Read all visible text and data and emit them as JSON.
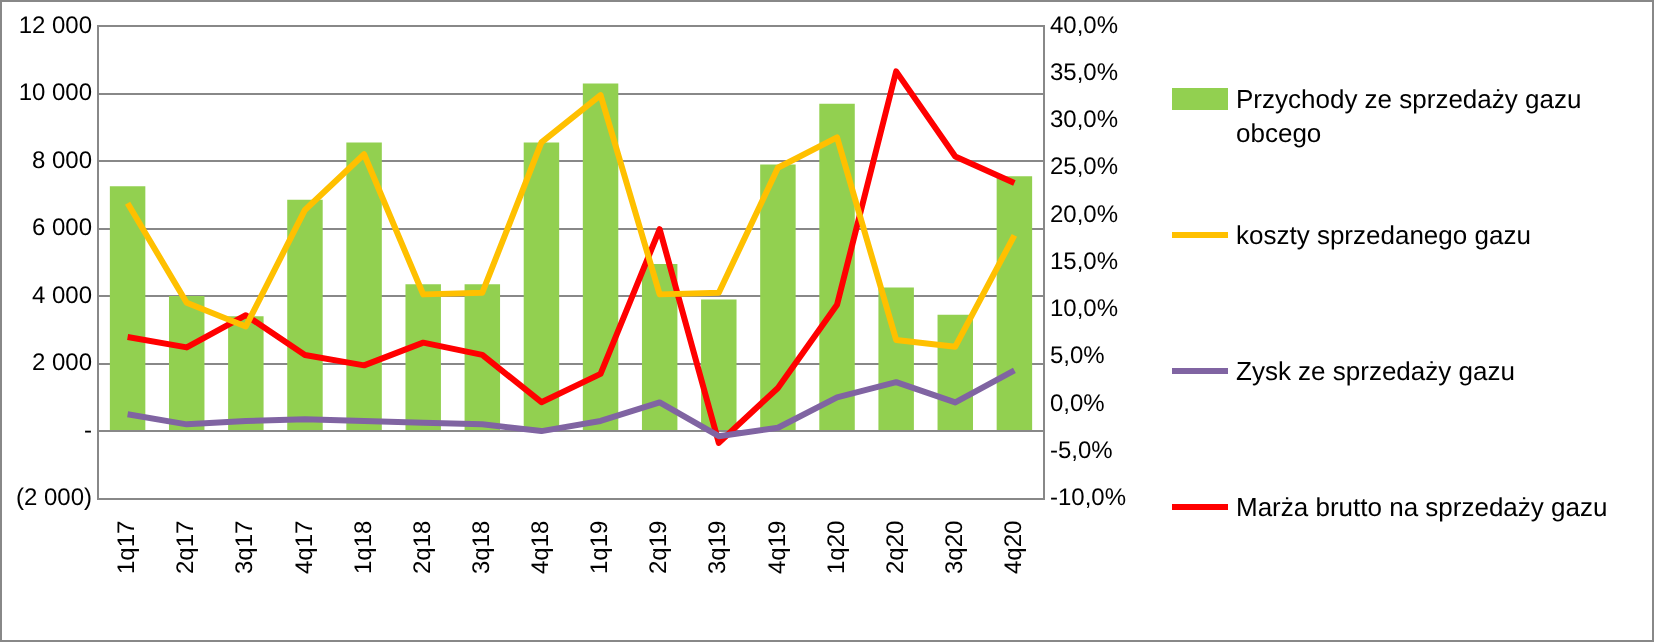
{
  "chart_data": {
    "type": "bar",
    "categories": [
      "1q17",
      "2q17",
      "3q17",
      "4q17",
      "1q18",
      "2q18",
      "3q18",
      "4q18",
      "1q19",
      "2q19",
      "3q19",
      "4q19",
      "1q20",
      "2q20",
      "3q20",
      "4q20"
    ],
    "series": [
      {
        "name": "Przychody ze sprzedaży gazu obcego",
        "color": "#92d050",
        "values": [
          7250,
          4000,
          3400,
          6850,
          8550,
          4350,
          4350,
          8550,
          10300,
          4950,
          3900,
          7900,
          9700,
          4250,
          3450,
          7550
        ]
      },
      {
        "name": "koszty sprzedanego gazu",
        "type": "line",
        "color": "#ffc000",
        "values": [
          6750,
          3800,
          3100,
          6550,
          8200,
          4050,
          4100,
          8550,
          9950,
          4050,
          4100,
          7800,
          8700,
          2700,
          2500,
          5800
        ]
      },
      {
        "name": "Zysk ze sprzedaży gazu",
        "type": "line",
        "color": "#8064a2",
        "values": [
          500,
          200,
          300,
          350,
          300,
          250,
          200,
          0,
          300,
          850,
          -150,
          100,
          1000,
          1450,
          850,
          1800
        ]
      },
      {
        "name": "Marża brutto na sprzedaży gazu",
        "type": "line",
        "color": "#ff0000",
        "axis": "y2",
        "values": [
          7.1,
          6.0,
          9.4,
          5.2,
          4.1,
          6.5,
          5.2,
          0.2,
          3.2,
          18.5,
          -4.1,
          1.7,
          10.5,
          35.2,
          26.2,
          23.4
        ]
      }
    ],
    "ylim": [
      -2000,
      12000
    ],
    "yticks": [
      {
        "value": -2000,
        "label": "(2 000)"
      },
      {
        "value": 0,
        "label": "-"
      },
      {
        "value": 2000,
        "label": "2 000"
      },
      {
        "value": 4000,
        "label": "4 000"
      },
      {
        "value": 6000,
        "label": "6 000"
      },
      {
        "value": 8000,
        "label": "8 000"
      },
      {
        "value": 10000,
        "label": "10 000"
      },
      {
        "value": 12000,
        "label": "12 000"
      }
    ],
    "y2lim": [
      -10,
      40
    ],
    "y2ticks": [
      {
        "value": -10,
        "label": "-10,0%"
      },
      {
        "value": -5,
        "label": "-5,0%"
      },
      {
        "value": 0,
        "label": "0,0%"
      },
      {
        "value": 5,
        "label": "5,0%"
      },
      {
        "value": 10,
        "label": "10,0%"
      },
      {
        "value": 15,
        "label": "15,0%"
      },
      {
        "value": 20,
        "label": "20,0%"
      },
      {
        "value": 25,
        "label": "25,0%"
      },
      {
        "value": 30,
        "label": "30,0%"
      },
      {
        "value": 35,
        "label": "35,0%"
      },
      {
        "value": 40,
        "label": "40,0%"
      }
    ],
    "grid": "y",
    "legend": "right",
    "marker": "none",
    "line_style": "solid"
  }
}
